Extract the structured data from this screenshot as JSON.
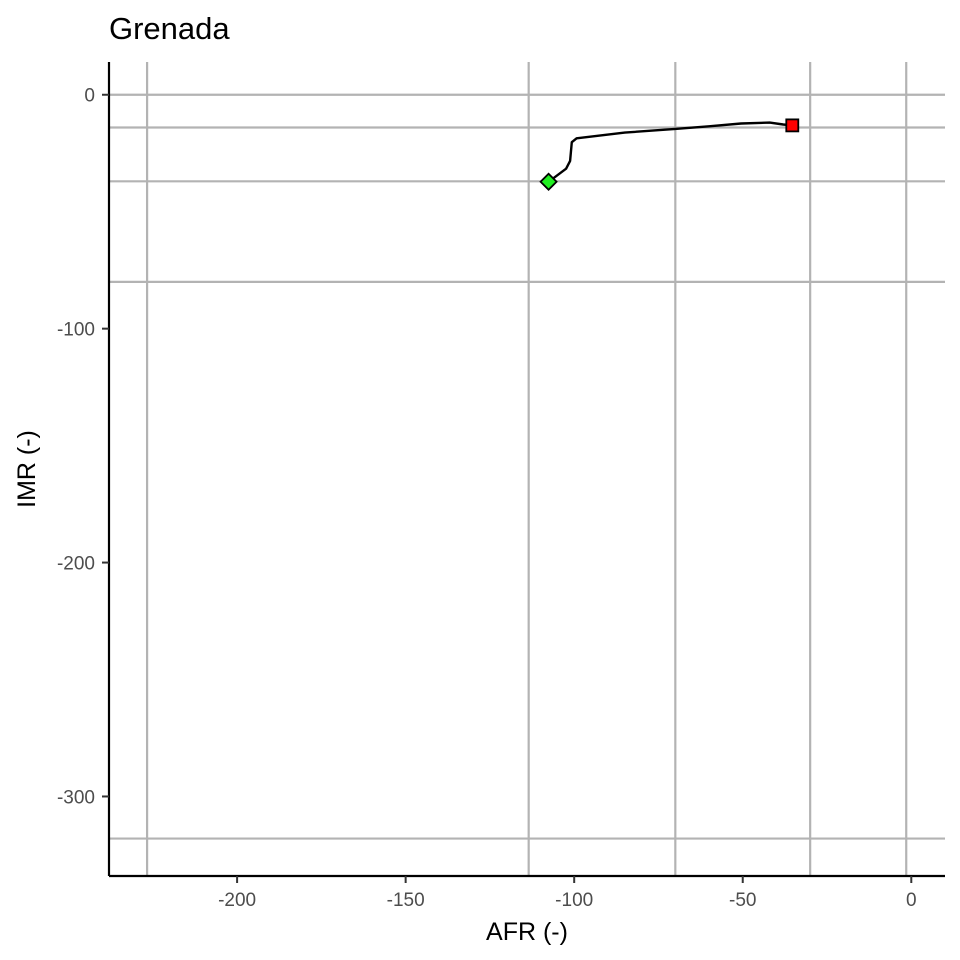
{
  "chart_data": {
    "type": "line",
    "title": "Grenada",
    "xlabel": "AFR (-)",
    "ylabel": "IMR (-)",
    "xlim": [
      -238,
      10
    ],
    "ylim": [
      -334,
      14
    ],
    "x_ticks": [
      {
        "value": -200,
        "label": "-200"
      },
      {
        "value": -150,
        "label": "-150"
      },
      {
        "value": -100,
        "label": "-100"
      },
      {
        "value": -50,
        "label": "-50"
      },
      {
        "value": 0,
        "label": "0"
      }
    ],
    "y_ticks": [
      {
        "value": 0,
        "label": "0"
      },
      {
        "value": -100,
        "label": "-100"
      },
      {
        "value": -200,
        "label": "-200"
      },
      {
        "value": -300,
        "label": "-300"
      }
    ],
    "grid": true,
    "reference_lines": {
      "vertical": [
        -226.7,
        -113.5,
        -70,
        -30,
        -1.5
      ],
      "horizontal": [
        -14,
        -37,
        -80,
        -318
      ]
    },
    "series": [
      {
        "x": [
          -107.6,
          -102.4,
          -101.2,
          -100.7,
          -99.3,
          -85,
          -70,
          -60,
          -50.5,
          -42,
          -38,
          -35.3
        ],
        "y": [
          -37.2,
          -31.6,
          -28.3,
          -20.3,
          -18.6,
          -16.2,
          -14.6,
          -13.5,
          -12.3,
          -11.9,
          -12.7,
          -13.1
        ],
        "color": "#000000"
      }
    ],
    "markers": [
      {
        "shape": "diamond",
        "x": -107.6,
        "y": -37.2,
        "color": "#22ee22"
      },
      {
        "shape": "square",
        "x": -35.3,
        "y": -13.1,
        "color": "#ff0000"
      }
    ]
  }
}
